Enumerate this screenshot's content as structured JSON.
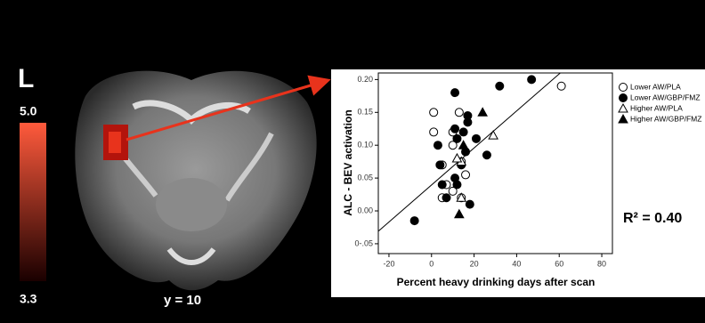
{
  "chart_data": {
    "type": "scatter",
    "xlabel": "Percent heavy drinking days after scan",
    "ylabel": "ALC - BEV activation",
    "annotation": "R² = 0.40",
    "xlim": [
      -25,
      85
    ],
    "xticks": [
      -20,
      0,
      20,
      40,
      60,
      80
    ],
    "ylim": [
      -0.065,
      0.21
    ],
    "yticks": [
      {
        "value": 0.2,
        "label": "0.20"
      },
      {
        "value": 0.15,
        "label": "0.15"
      },
      {
        "value": 0.1,
        "label": "0.10"
      },
      {
        "value": 0.05,
        "label": "0.05"
      },
      {
        "value": 0,
        "label": "0.00"
      },
      {
        "value": -0.05,
        "label": "0-.05"
      }
    ],
    "series": [
      {
        "name": "Lower AW/PLA",
        "marker": "circle",
        "filled": false,
        "color": "#000000",
        "x": [
          61,
          1,
          13,
          10,
          1,
          10,
          14,
          16,
          5,
          7,
          10,
          5,
          14
        ],
        "values": [
          0.19,
          0.15,
          0.15,
          0.12,
          0.12,
          0.1,
          0.075,
          0.055,
          0.07,
          0.04,
          0.03,
          0.02,
          0.02
        ]
      },
      {
        "name": "Lower AW/GBP/FMZ",
        "marker": "circle",
        "filled": true,
        "color": "#000000",
        "x": [
          47,
          32,
          11,
          17,
          17,
          11,
          15,
          12,
          3,
          16,
          26,
          21,
          4,
          14,
          5,
          12,
          11,
          7,
          18,
          -8
        ],
        "values": [
          0.2,
          0.19,
          0.18,
          0.145,
          0.135,
          0.125,
          0.12,
          0.11,
          0.1,
          0.09,
          0.085,
          0.11,
          0.07,
          0.07,
          0.04,
          0.04,
          0.05,
          0.02,
          0.01,
          -0.015
        ]
      },
      {
        "name": "Higher AW/PLA",
        "marker": "triangle",
        "filled": false,
        "color": "#000000",
        "x": [
          29,
          14,
          14,
          12
        ],
        "values": [
          0.115,
          0.075,
          0.02,
          0.08
        ]
      },
      {
        "name": "Higher AW/GBP/FMZ",
        "marker": "triangle",
        "filled": true,
        "color": "#000000",
        "x": [
          24,
          15,
          13
        ],
        "values": [
          0.15,
          0.1,
          -0.005
        ]
      }
    ],
    "fit": {
      "x": [
        -25,
        60.5
      ],
      "y": [
        -0.031,
        0.21
      ],
      "color": "#000000"
    }
  },
  "brain": {
    "panel_label": "L",
    "colorbar_max": "5.0",
    "colorbar_min": "3.3",
    "slice_label": "y = 10"
  }
}
